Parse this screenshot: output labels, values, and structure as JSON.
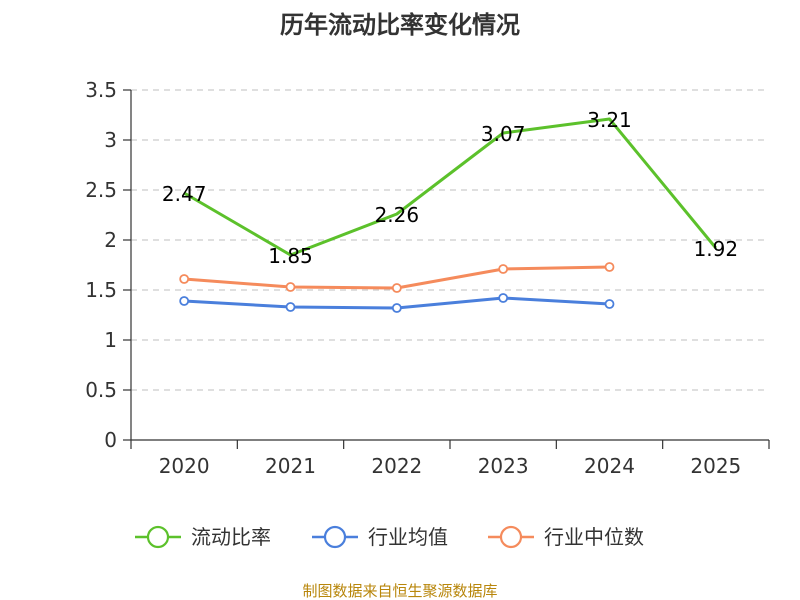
{
  "chart_data": {
    "type": "line",
    "title": "历年流动比率变化情况",
    "categories": [
      "2020",
      "2021",
      "2022",
      "2023",
      "2024",
      "2025"
    ],
    "ylim": [
      0,
      3.5
    ],
    "yticks": [
      "0",
      "0.5",
      "1",
      "1.5",
      "2",
      "2.5",
      "3",
      "3.5"
    ],
    "ytick_values": [
      0,
      0.5,
      1,
      1.5,
      2,
      2.5,
      3,
      3.5
    ],
    "grid": true,
    "legend_position": "bottom",
    "series": [
      {
        "name": "流动比率",
        "color": "#5cc12b",
        "values": [
          2.47,
          1.85,
          2.26,
          3.07,
          3.21,
          1.92
        ],
        "labels": [
          "2.47",
          "1.85",
          "2.26",
          "3.07",
          "3.21",
          "1.92"
        ],
        "show_labels": true,
        "markers": false
      },
      {
        "name": "行业均值",
        "color": "#4a7fdc",
        "values": [
          1.39,
          1.33,
          1.32,
          1.42,
          1.36,
          null
        ],
        "show_labels": false,
        "markers": true
      },
      {
        "name": "行业中位数",
        "color": "#f58b5c",
        "values": [
          1.61,
          1.53,
          1.52,
          1.71,
          1.73,
          null
        ],
        "show_labels": false,
        "markers": true
      }
    ],
    "source": "制图数据来自恒生聚源数据库"
  }
}
